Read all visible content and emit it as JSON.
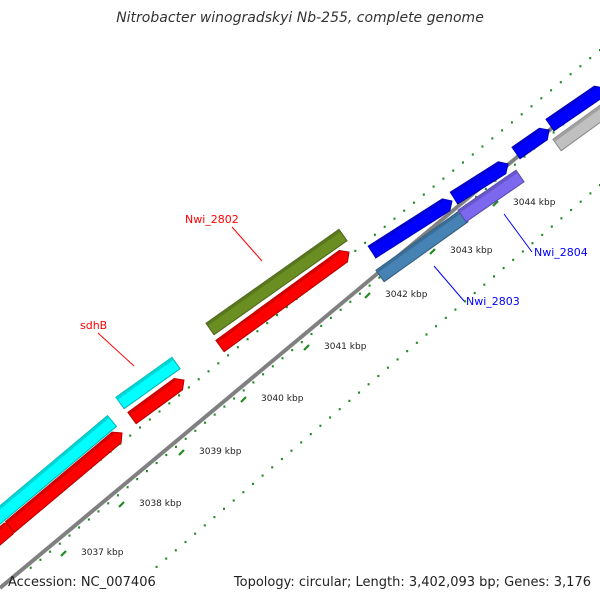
{
  "title": "Nitrobacter winogradskyi Nb-255, complete genome",
  "footer": {
    "accession": "Accession: NC_007406",
    "summary": "Topology: circular; Length: 3,402,093 bp; Genes: 3,176"
  },
  "map": {
    "ticks": [
      "3037 kbp",
      "3038 kbp",
      "3039 kbp",
      "3040 kbp",
      "3041 kbp",
      "3042 kbp",
      "3043 kbp",
      "3044 kbp"
    ],
    "gene_labels": [
      {
        "id": "sdhB",
        "text": "sdhB",
        "color": "#ff0000"
      },
      {
        "id": "Nwi_2802",
        "text": "Nwi_2802",
        "color": "#ff0000"
      },
      {
        "id": "Nwi_2803",
        "text": "Nwi_2803",
        "color": "#0000ff"
      },
      {
        "id": "Nwi_2804",
        "text": "Nwi_2804",
        "color": "#0000ff"
      }
    ],
    "feature_colors": {
      "cds": "#ff0000",
      "sdh": "#00ffff",
      "nwi_2802": "#6b8e23",
      "blue": "#0000ff",
      "nwi_2803": "#4682b4",
      "nwi_2804": "#7b68ee",
      "other": "#c0c0c0",
      "backbone": "#808080",
      "tick": "#228b22"
    }
  }
}
